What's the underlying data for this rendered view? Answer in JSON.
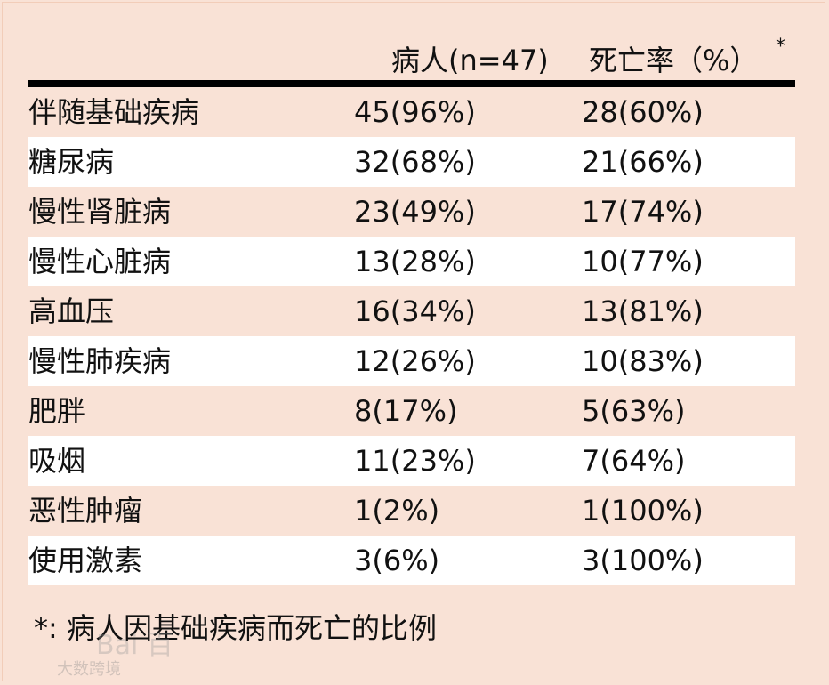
{
  "table": {
    "headers": {
      "patients": "病人(n=47)",
      "mortality": "死亡率（%）",
      "mortality_mark": "*"
    },
    "rows": [
      {
        "condition": "伴随基础疾病",
        "patients": "45(96%)",
        "mortality": "28(60%)"
      },
      {
        "condition": "糖尿病",
        "patients": "32(68%)",
        "mortality": "21(66%)"
      },
      {
        "condition": "慢性肾脏病",
        "patients": "23(49%)",
        "mortality": "17(74%)"
      },
      {
        "condition": "慢性心脏病",
        "patients": "13(28%)",
        "mortality": "10(77%)"
      },
      {
        "condition": "高血压",
        "patients": "16(34%)",
        "mortality": "13(81%)"
      },
      {
        "condition": "慢性肺疾病",
        "patients": "12(26%)",
        "mortality": "10(83%)"
      },
      {
        "condition": "肥胖",
        "patients": "8(17%)",
        "mortality": "5(63%)"
      },
      {
        "condition": "吸烟",
        "patients": "11(23%)",
        "mortality": "7(64%)"
      },
      {
        "condition": "恶性肿瘤",
        "patients": "1(2%)",
        "mortality": "1(100%)"
      },
      {
        "condition": "使用激素",
        "patients": "3(6%)",
        "mortality": "3(100%)"
      }
    ]
  },
  "footnote": "*: 病人因基础疾病而死亡的比例",
  "watermark": {
    "mark": "Bai 百",
    "text": "大数跨境"
  },
  "colors": {
    "background": "#f9e2d6",
    "row_alt": "#ffffff",
    "rule": "#000000"
  }
}
